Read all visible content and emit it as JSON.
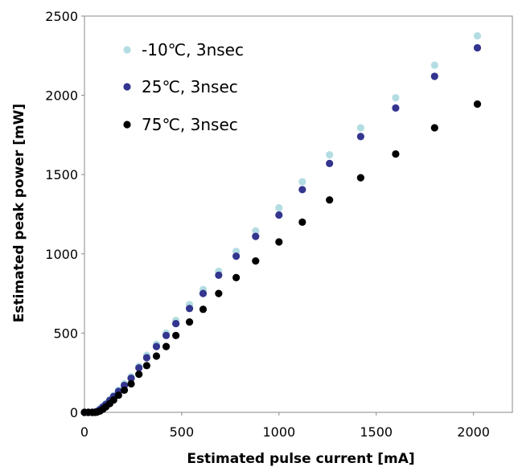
{
  "chart_data": {
    "type": "scatter",
    "xlabel": "Estimated pulse current [mA]",
    "ylabel": "Estimated peak power [mW]",
    "xlim": [
      0,
      2200
    ],
    "ylim": [
      0,
      2500
    ],
    "x_ticks": [
      "0",
      "500",
      "1000",
      "1500",
      "2000"
    ],
    "y_ticks": [
      "0",
      "500",
      "1000",
      "1500",
      "2000",
      "2500"
    ],
    "grid": false,
    "legend_position": "top-left",
    "series": [
      {
        "name": "-10℃, 3nsec",
        "color": "#b3dde2",
        "points": [
          [
            0,
            0
          ],
          [
            20,
            0
          ],
          [
            40,
            0
          ],
          [
            55,
            2
          ],
          [
            65,
            8
          ],
          [
            80,
            22
          ],
          [
            95,
            38
          ],
          [
            110,
            55
          ],
          [
            130,
            80
          ],
          [
            150,
            105
          ],
          [
            175,
            140
          ],
          [
            205,
            180
          ],
          [
            240,
            225
          ],
          [
            280,
            290
          ],
          [
            320,
            360
          ],
          [
            370,
            430
          ],
          [
            420,
            500
          ],
          [
            470,
            580
          ],
          [
            540,
            680
          ],
          [
            610,
            775
          ],
          [
            690,
            890
          ],
          [
            780,
            1015
          ],
          [
            880,
            1145
          ],
          [
            1000,
            1290
          ],
          [
            1120,
            1455
          ],
          [
            1260,
            1625
          ],
          [
            1420,
            1795
          ],
          [
            1600,
            1985
          ],
          [
            1800,
            2190
          ],
          [
            2020,
            2375
          ]
        ]
      },
      {
        "name": "25℃, 3nsec",
        "color": "#33358f",
        "points": [
          [
            0,
            0
          ],
          [
            20,
            0
          ],
          [
            40,
            0
          ],
          [
            55,
            1
          ],
          [
            65,
            6
          ],
          [
            80,
            18
          ],
          [
            95,
            34
          ],
          [
            110,
            50
          ],
          [
            130,
            75
          ],
          [
            150,
            100
          ],
          [
            175,
            132
          ],
          [
            205,
            170
          ],
          [
            240,
            215
          ],
          [
            280,
            280
          ],
          [
            320,
            345
          ],
          [
            370,
            415
          ],
          [
            420,
            485
          ],
          [
            470,
            560
          ],
          [
            540,
            655
          ],
          [
            610,
            750
          ],
          [
            690,
            865
          ],
          [
            780,
            985
          ],
          [
            880,
            1110
          ],
          [
            1000,
            1245
          ],
          [
            1120,
            1405
          ],
          [
            1260,
            1570
          ],
          [
            1420,
            1740
          ],
          [
            1600,
            1920
          ],
          [
            1800,
            2120
          ],
          [
            2020,
            2300
          ]
        ]
      },
      {
        "name": "75℃, 3nsec",
        "color": "#000000",
        "points": [
          [
            0,
            0
          ],
          [
            20,
            0
          ],
          [
            40,
            0
          ],
          [
            55,
            0
          ],
          [
            65,
            2
          ],
          [
            80,
            8
          ],
          [
            95,
            20
          ],
          [
            110,
            35
          ],
          [
            130,
            55
          ],
          [
            150,
            78
          ],
          [
            175,
            108
          ],
          [
            205,
            140
          ],
          [
            240,
            180
          ],
          [
            280,
            240
          ],
          [
            320,
            295
          ],
          [
            370,
            355
          ],
          [
            420,
            415
          ],
          [
            470,
            485
          ],
          [
            540,
            570
          ],
          [
            610,
            650
          ],
          [
            690,
            750
          ],
          [
            780,
            850
          ],
          [
            880,
            955
          ],
          [
            1000,
            1075
          ],
          [
            1120,
            1200
          ],
          [
            1260,
            1340
          ],
          [
            1420,
            1480
          ],
          [
            1600,
            1630
          ],
          [
            1800,
            1795
          ],
          [
            2020,
            1945
          ]
        ]
      }
    ]
  }
}
